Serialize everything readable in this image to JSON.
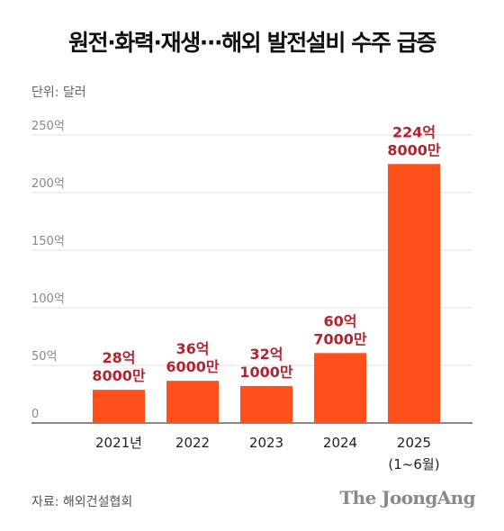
{
  "title": "원전·화력·재생···해외 발전설비 수주 급증",
  "unit": "단위: 달러",
  "source": "자료: 해외건설협회",
  "brand": "The JoongAng",
  "colors": {
    "bar": "#ff4f1a",
    "value_label": "#b4232f",
    "grid": "#e2e2e2",
    "axis": "#444444"
  },
  "chart_data": {
    "type": "bar",
    "categories": [
      "2021년",
      "2022",
      "2023",
      "2024",
      "2025"
    ],
    "category_sublabels": [
      "",
      "",
      "",
      "",
      "(1~6월)"
    ],
    "values": [
      28.8,
      36.6,
      32.1,
      60.7,
      224.8
    ],
    "value_labels": [
      [
        "28억",
        "8000만"
      ],
      [
        "36억",
        "6000만"
      ],
      [
        "32억",
        "1000만"
      ],
      [
        "60억",
        "7000만"
      ],
      [
        "224억",
        "8000만"
      ]
    ],
    "yticks": [
      0,
      50,
      100,
      150,
      200,
      250
    ],
    "ytick_labels": [
      "0",
      "50억",
      "100억",
      "150억",
      "200억",
      "250억"
    ],
    "ylim": [
      0,
      250
    ],
    "unit": "억 달러",
    "grid": true,
    "legend": "none"
  }
}
